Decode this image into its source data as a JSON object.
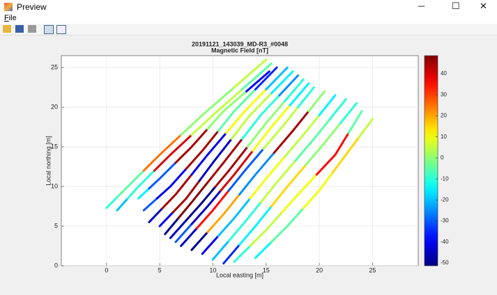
{
  "window": {
    "title": "Preview",
    "menu": [
      "File"
    ]
  },
  "chart_data": {
    "type": "track",
    "title": "20191121_143039_MD-R3_#0048",
    "subtitle": "Magnetic Field [nT]",
    "x_label": "Local easting [m]",
    "y_label": "Local northing [m]",
    "xlim": [
      -4.25,
      29.3
    ],
    "ylim": [
      0,
      26.5
    ],
    "xticks": [
      0,
      5,
      10,
      15,
      20,
      25
    ],
    "yticks": [
      0,
      5,
      10,
      15,
      20,
      25
    ],
    "grid": true,
    "colormap": "jet",
    "clim": [
      -51.3,
      48.6
    ],
    "cticks": [
      -50,
      -40,
      -30,
      -20,
      -10,
      0,
      10,
      20,
      30,
      40
    ],
    "tracks": [
      {
        "x": [
          0,
          2,
          5,
          9,
          15
        ],
        "y": [
          7.3,
          10,
          14,
          19,
          26
        ],
        "values": [
          -10,
          -5,
          25,
          0,
          5
        ]
      },
      {
        "x": [
          1,
          3,
          6,
          10,
          15.5
        ],
        "y": [
          7,
          10,
          14,
          19,
          25.5
        ],
        "values": [
          -20,
          -10,
          40,
          5,
          -5
        ]
      },
      {
        "x": [
          3,
          5,
          8,
          11,
          15.3
        ],
        "y": [
          8.5,
          11,
          15,
          19.5,
          24.5
        ],
        "values": [
          -15,
          -30,
          45,
          0,
          -40
        ]
      },
      {
        "x": [
          3.5,
          6,
          9,
          12,
          16
        ],
        "y": [
          7,
          10,
          14.5,
          19.5,
          25
        ],
        "values": [
          -30,
          -40,
          45,
          -5,
          -35
        ]
      },
      {
        "x": [
          4,
          6.5,
          9.5,
          13,
          17
        ],
        "y": [
          5.5,
          9,
          14,
          19.5,
          25
        ],
        "values": [
          -45,
          45,
          -40,
          10,
          -20
        ]
      },
      {
        "x": [
          5,
          7.5,
          10,
          13.5,
          17.5
        ],
        "y": [
          5,
          8.5,
          13,
          19,
          24.5
        ],
        "values": [
          -40,
          45,
          -45,
          5,
          -15
        ]
      },
      {
        "x": [
          5.5,
          8,
          11,
          14.5,
          18
        ],
        "y": [
          4,
          8,
          13,
          19,
          24
        ],
        "values": [
          -50,
          48,
          45,
          -10,
          -25
        ]
      },
      {
        "x": [
          6,
          9,
          11.5,
          15,
          18.5
        ],
        "y": [
          3.5,
          8,
          12,
          18,
          23.5
        ],
        "values": [
          -45,
          -50,
          45,
          0,
          -10
        ]
      },
      {
        "x": [
          6.5,
          9.5,
          12,
          15.5,
          19
        ],
        "y": [
          3,
          7.5,
          11.5,
          17.5,
          23
        ],
        "values": [
          -30,
          -45,
          40,
          10,
          -15
        ]
      },
      {
        "x": [
          7,
          10,
          13,
          16.5,
          19.5
        ],
        "y": [
          2.5,
          7,
          12,
          17.5,
          22.5
        ],
        "values": [
          -45,
          35,
          -30,
          5,
          -10
        ]
      },
      {
        "x": [
          8,
          11,
          14,
          17.5,
          20.5
        ],
        "y": [
          2,
          6.5,
          11.5,
          17,
          22
        ],
        "values": [
          -50,
          20,
          -25,
          45,
          0
        ]
      },
      {
        "x": [
          9,
          12,
          15,
          18.5,
          21.5
        ],
        "y": [
          1.5,
          6,
          11,
          16.5,
          21.5
        ],
        "values": [
          -40,
          -20,
          10,
          5,
          -15
        ]
      },
      {
        "x": [
          10,
          13,
          16,
          19.5,
          22.5
        ],
        "y": [
          0.8,
          5.5,
          10.5,
          16,
          21
        ],
        "values": [
          -20,
          -10,
          5,
          -5,
          -10
        ]
      },
      {
        "x": [
          11,
          14,
          17,
          20.5,
          23.5
        ],
        "y": [
          0.3,
          5,
          10,
          15.5,
          20.5
        ],
        "values": [
          -35,
          -15,
          15,
          0,
          -10
        ]
      },
      {
        "x": [
          12,
          15,
          18,
          21.5,
          24
        ],
        "y": [
          0.5,
          4.5,
          9,
          14,
          19.5
        ],
        "values": [
          -10,
          5,
          10,
          35,
          -5
        ]
      },
      {
        "x": [
          14,
          17,
          20,
          22.5,
          25
        ],
        "y": [
          1,
          5,
          9.5,
          14,
          18.5
        ],
        "values": [
          -15,
          -5,
          10,
          15,
          5
        ]
      }
    ]
  }
}
